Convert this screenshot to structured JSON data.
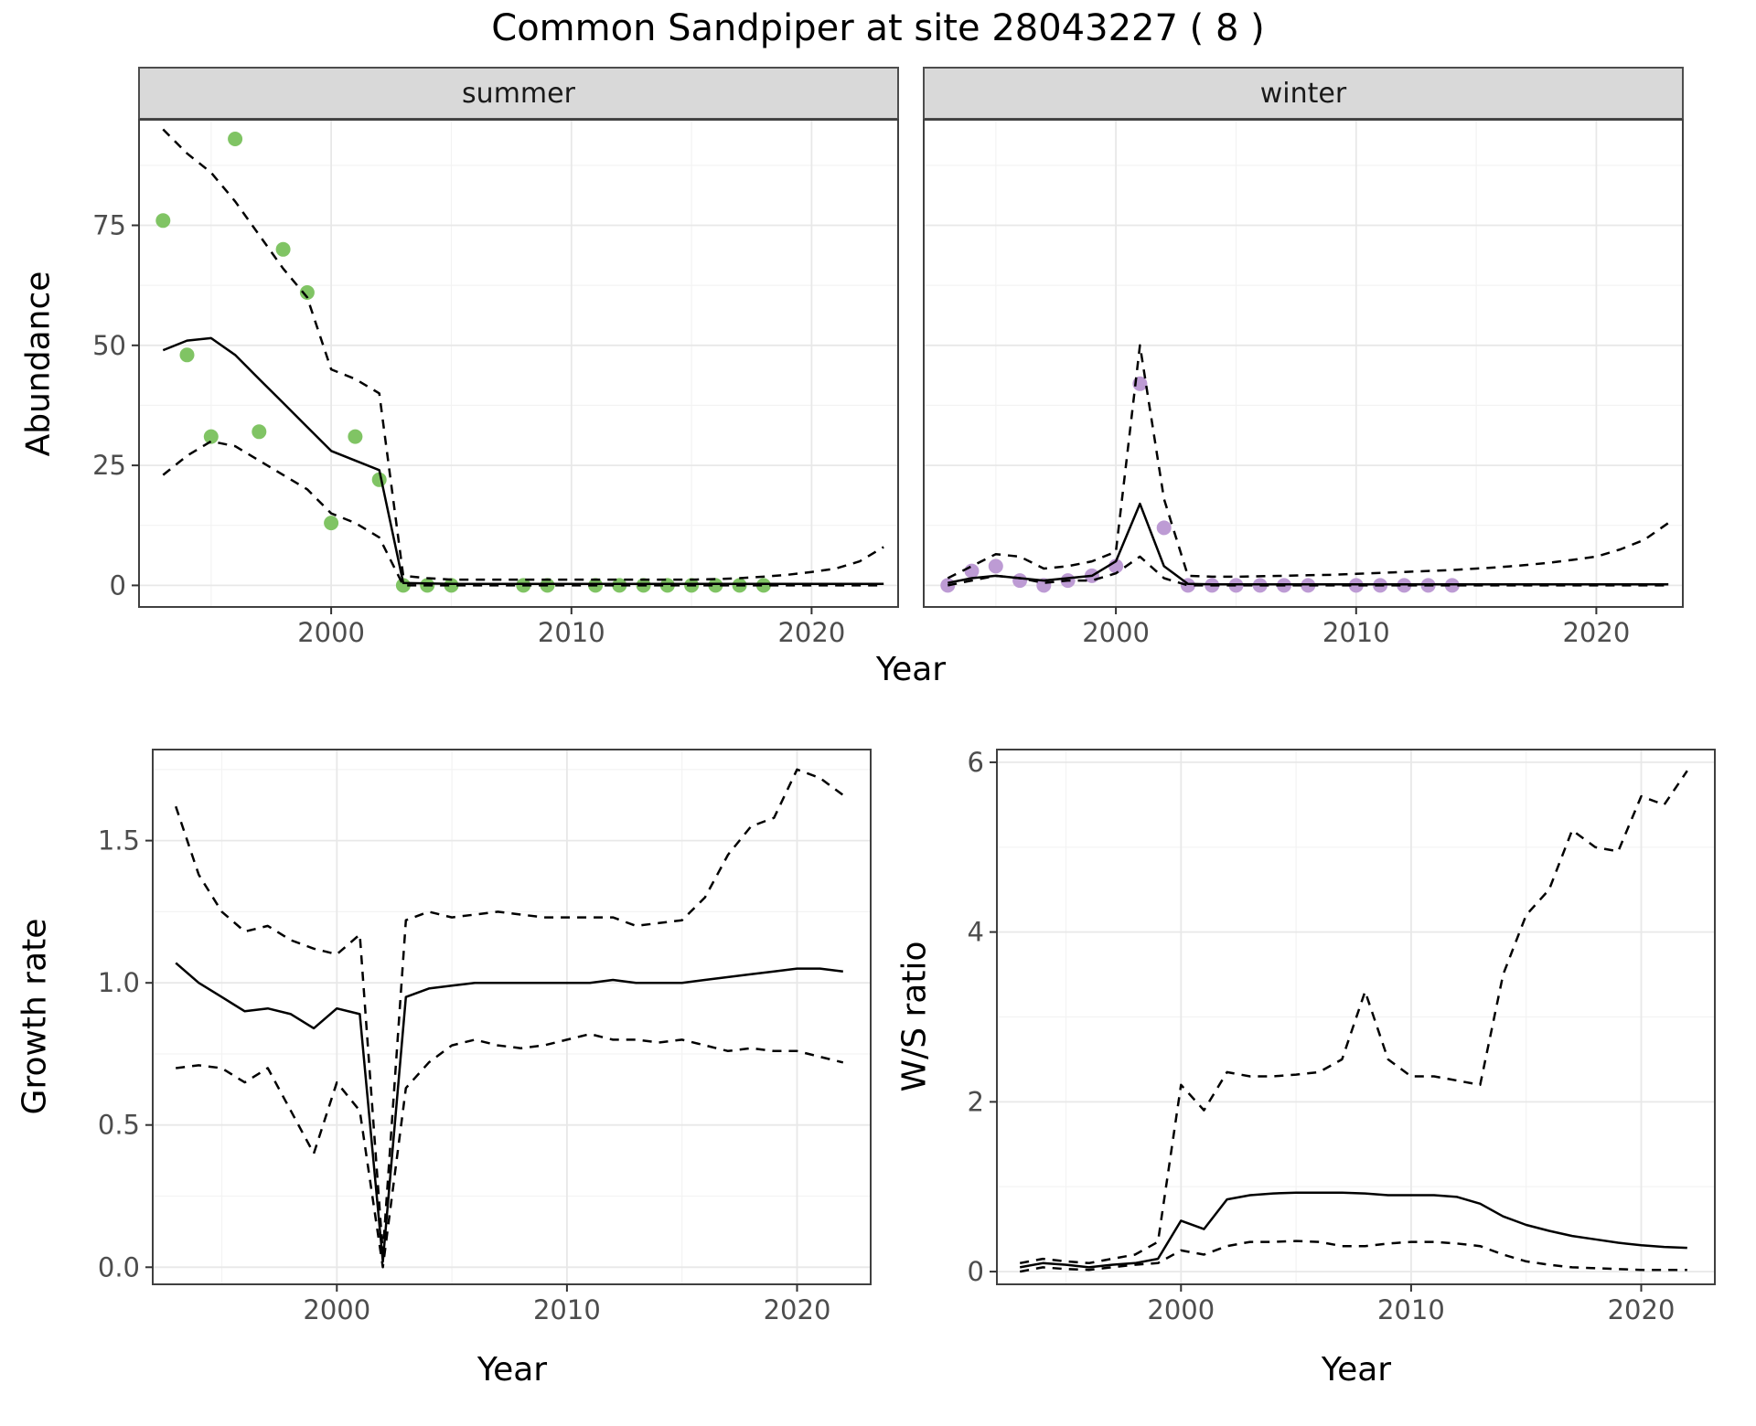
{
  "title": "Common Sandpiper at site 28043227 ( 8 )",
  "facets": {
    "summer": "summer",
    "winter": "winter"
  },
  "labels": {
    "year": "Year",
    "abundance": "Abundance",
    "growth_rate": "Growth rate",
    "ws_ratio": "W/S ratio"
  },
  "colors": {
    "summer_points": "#80c464",
    "winter_points": "#bd9bd4",
    "line": "#000000",
    "grid_major": "#e8e8e8",
    "grid_minor": "#f3f3f3",
    "panel_border": "#404040",
    "strip_bg": "#d9d9d9",
    "tick_text": "#4d4d4d"
  },
  "chart_data": [
    {
      "id": "abundance-summer",
      "type": "line",
      "facet": "summer",
      "xlabel": "Year",
      "ylabel": "Abundance",
      "xlim": [
        1992,
        2023.6
      ],
      "ylim": [
        -4.5,
        97
      ],
      "x_ticks": [
        2000,
        2010,
        2020
      ],
      "x_tick_labels": [
        "2000",
        "2010",
        "2020"
      ],
      "y_ticks": [
        0,
        25,
        50,
        75
      ],
      "y_tick_labels": [
        "0",
        "25",
        "50",
        "75"
      ],
      "show_y_axis": true,
      "grid": true,
      "series": [
        {
          "name": "observed_counts",
          "style": "points",
          "color": "#80c464",
          "x": [
            1993,
            1994,
            1995,
            1996,
            1997,
            1998,
            1999,
            2000,
            2001,
            2002,
            2003,
            2004,
            2005,
            2008,
            2009,
            2011,
            2012,
            2013,
            2014,
            2015,
            2016,
            2017,
            2018
          ],
          "y": [
            76,
            48,
            31,
            93,
            32,
            70,
            61,
            13,
            31,
            22,
            0,
            0,
            0,
            0,
            0,
            0,
            0,
            0,
            0,
            0,
            0,
            0,
            0
          ]
        },
        {
          "name": "model_fit",
          "style": "solid",
          "color": "#000000",
          "x": [
            1993,
            1994,
            1995,
            1996,
            1997,
            1998,
            1999,
            2000,
            2001,
            2002,
            2003,
            2004,
            2005,
            2006,
            2007,
            2008,
            2009,
            2010,
            2011,
            2012,
            2013,
            2014,
            2015,
            2016,
            2017,
            2018,
            2019,
            2020,
            2021,
            2022,
            2023
          ],
          "y": [
            49,
            51,
            51.5,
            48,
            43,
            38,
            33,
            28,
            26,
            24,
            0.5,
            0.4,
            0.3,
            0.3,
            0.3,
            0.3,
            0.3,
            0.3,
            0.3,
            0.3,
            0.3,
            0.3,
            0.3,
            0.3,
            0.3,
            0.3,
            0.3,
            0.3,
            0.3,
            0.3,
            0.3
          ]
        },
        {
          "name": "upper_ci",
          "style": "dashed",
          "color": "#000000",
          "x": [
            1993,
            1994,
            1995,
            1996,
            1997,
            1998,
            1999,
            2000,
            2001,
            2002,
            2003,
            2004,
            2005,
            2006,
            2007,
            2008,
            2009,
            2010,
            2011,
            2012,
            2013,
            2014,
            2015,
            2016,
            2017,
            2018,
            2019,
            2020,
            2021,
            2022,
            2023
          ],
          "y": [
            95,
            90,
            86,
            80,
            73,
            66,
            60,
            45,
            43,
            40,
            2,
            1.5,
            1.2,
            1.2,
            1.2,
            1.2,
            1.2,
            1.2,
            1.2,
            1.2,
            1.2,
            1.2,
            1.2,
            1.3,
            1.5,
            1.8,
            2.2,
            2.8,
            3.5,
            5,
            8
          ]
        },
        {
          "name": "lower_ci",
          "style": "dashed",
          "color": "#000000",
          "x": [
            1993,
            1994,
            1995,
            1996,
            1997,
            1998,
            1999,
            2000,
            2001,
            2002,
            2003,
            2004,
            2005,
            2006,
            2007,
            2008,
            2009,
            2010,
            2011,
            2012,
            2013,
            2014,
            2015,
            2016,
            2017,
            2018,
            2019,
            2020,
            2021,
            2022,
            2023
          ],
          "y": [
            23,
            27,
            30,
            29,
            26,
            23,
            20,
            15,
            13,
            10,
            0,
            0,
            0,
            0,
            0,
            0,
            0,
            0,
            0,
            0,
            0,
            0,
            0,
            0,
            0,
            0,
            0,
            0,
            0,
            0,
            0
          ]
        }
      ]
    },
    {
      "id": "abundance-winter",
      "type": "line",
      "facet": "winter",
      "xlabel": "Year",
      "ylabel": "Abundance",
      "xlim": [
        1992,
        2023.6
      ],
      "ylim": [
        -4.5,
        97
      ],
      "x_ticks": [
        2000,
        2010,
        2020
      ],
      "x_tick_labels": [
        "2000",
        "2010",
        "2020"
      ],
      "y_ticks": [
        0,
        25,
        50,
        75
      ],
      "y_tick_labels": [
        "0",
        "25",
        "50",
        "75"
      ],
      "show_y_axis": false,
      "grid": true,
      "series": [
        {
          "name": "observed_counts",
          "style": "points",
          "color": "#bd9bd4",
          "x": [
            1993,
            1994,
            1995,
            1996,
            1997,
            1998,
            1999,
            2000,
            2001,
            2002,
            2003,
            2004,
            2005,
            2006,
            2007,
            2008,
            2010,
            2011,
            2012,
            2013,
            2014
          ],
          "y": [
            0,
            3,
            4,
            1,
            0,
            1,
            2,
            4,
            42,
            12,
            0,
            0,
            0,
            0,
            0,
            0,
            0,
            0,
            0,
            0,
            0
          ]
        },
        {
          "name": "model_fit",
          "style": "solid",
          "color": "#000000",
          "x": [
            1993,
            1994,
            1995,
            1996,
            1997,
            1998,
            1999,
            2000,
            2001,
            2002,
            2003,
            2004,
            2005,
            2006,
            2007,
            2008,
            2009,
            2010,
            2011,
            2012,
            2013,
            2014,
            2015,
            2016,
            2017,
            2018,
            2019,
            2020,
            2021,
            2022,
            2023
          ],
          "y": [
            0.5,
            1.5,
            2,
            1.5,
            1,
            1.5,
            2,
            5,
            17,
            4,
            0.3,
            0.2,
            0.2,
            0.2,
            0.2,
            0.2,
            0.2,
            0.2,
            0.2,
            0.2,
            0.2,
            0.2,
            0.2,
            0.2,
            0.2,
            0.2,
            0.2,
            0.2,
            0.2,
            0.2,
            0.2
          ]
        },
        {
          "name": "upper_ci",
          "style": "dashed",
          "color": "#000000",
          "x": [
            1993,
            1994,
            1995,
            1996,
            1997,
            1998,
            1999,
            2000,
            2001,
            2002,
            2003,
            2004,
            2005,
            2006,
            2007,
            2008,
            2009,
            2010,
            2011,
            2012,
            2013,
            2014,
            2015,
            2016,
            2017,
            2018,
            2019,
            2020,
            2021,
            2022,
            2023
          ],
          "y": [
            1.5,
            4,
            6.5,
            6,
            3.5,
            4,
            5,
            7,
            50,
            18,
            2,
            1.8,
            1.8,
            1.9,
            2,
            2.1,
            2.2,
            2.4,
            2.6,
            2.8,
            3,
            3.2,
            3.5,
            3.8,
            4.2,
            4.7,
            5.3,
            6,
            7.5,
            9.5,
            13
          ]
        },
        {
          "name": "lower_ci",
          "style": "dashed",
          "color": "#000000",
          "x": [
            1993,
            1994,
            1995,
            1996,
            1997,
            1998,
            1999,
            2000,
            2001,
            2002,
            2003,
            2004,
            2005,
            2006,
            2007,
            2008,
            2009,
            2010,
            2011,
            2012,
            2013,
            2014,
            2015,
            2016,
            2017,
            2018,
            2019,
            2020,
            2021,
            2022,
            2023
          ],
          "y": [
            0,
            1,
            2,
            1.5,
            0.5,
            1,
            1,
            2.5,
            6,
            1.5,
            0,
            0,
            0,
            0,
            0,
            0,
            0,
            0,
            0,
            0,
            0,
            0,
            0,
            0,
            0,
            0,
            0,
            0,
            0,
            0,
            0
          ]
        }
      ]
    },
    {
      "id": "growth-rate",
      "type": "line",
      "xlabel": "Year",
      "ylabel": "Growth rate",
      "xlim": [
        1992,
        2023.2
      ],
      "ylim": [
        -0.06,
        1.82
      ],
      "x_ticks": [
        2000,
        2010,
        2020
      ],
      "x_tick_labels": [
        "2000",
        "2010",
        "2020"
      ],
      "y_ticks": [
        0,
        0.5,
        1,
        1.5
      ],
      "y_tick_labels": [
        "0.0",
        "0.5",
        "1.0",
        "1.5"
      ],
      "show_y_axis": true,
      "grid": true,
      "series": [
        {
          "name": "growth_rate_fit",
          "style": "solid",
          "color": "#000000",
          "x": [
            1993,
            1994,
            1995,
            1996,
            1997,
            1998,
            1999,
            2000,
            2001,
            2002,
            2003,
            2004,
            2005,
            2006,
            2007,
            2008,
            2009,
            2010,
            2011,
            2012,
            2013,
            2014,
            2015,
            2016,
            2017,
            2018,
            2019,
            2020,
            2021,
            2022
          ],
          "y": [
            1.07,
            1.0,
            0.95,
            0.9,
            0.91,
            0.89,
            0.84,
            0.91,
            0.89,
            0.02,
            0.95,
            0.98,
            0.99,
            1.0,
            1.0,
            1.0,
            1.0,
            1.0,
            1.0,
            1.01,
            1.0,
            1.0,
            1.0,
            1.01,
            1.02,
            1.03,
            1.04,
            1.05,
            1.05,
            1.04
          ]
        },
        {
          "name": "upper_ci",
          "style": "dashed",
          "color": "#000000",
          "x": [
            1993,
            1994,
            1995,
            1996,
            1997,
            1998,
            1999,
            2000,
            2001,
            2002,
            2003,
            2004,
            2005,
            2006,
            2007,
            2008,
            2009,
            2010,
            2011,
            2012,
            2013,
            2014,
            2015,
            2016,
            2017,
            2018,
            2019,
            2020,
            2021,
            2022
          ],
          "y": [
            1.62,
            1.38,
            1.25,
            1.18,
            1.2,
            1.15,
            1.12,
            1.1,
            1.17,
            0.05,
            1.22,
            1.25,
            1.23,
            1.24,
            1.25,
            1.24,
            1.23,
            1.23,
            1.23,
            1.23,
            1.2,
            1.21,
            1.22,
            1.3,
            1.45,
            1.55,
            1.58,
            1.75,
            1.72,
            1.66
          ]
        },
        {
          "name": "lower_ci",
          "style": "dashed",
          "color": "#000000",
          "x": [
            1993,
            1994,
            1995,
            1996,
            1997,
            1998,
            1999,
            2000,
            2001,
            2002,
            2003,
            2004,
            2005,
            2006,
            2007,
            2008,
            2009,
            2010,
            2011,
            2012,
            2013,
            2014,
            2015,
            2016,
            2017,
            2018,
            2019,
            2020,
            2021,
            2022
          ],
          "y": [
            0.7,
            0.71,
            0.7,
            0.65,
            0.7,
            0.55,
            0.4,
            0.65,
            0.55,
            0.0,
            0.63,
            0.72,
            0.78,
            0.8,
            0.78,
            0.77,
            0.78,
            0.8,
            0.82,
            0.8,
            0.8,
            0.79,
            0.8,
            0.78,
            0.76,
            0.77,
            0.76,
            0.76,
            0.74,
            0.72
          ]
        }
      ]
    },
    {
      "id": "ws-ratio",
      "type": "line",
      "xlabel": "Year",
      "ylabel": "W/S ratio",
      "xlim": [
        1992,
        2023.2
      ],
      "ylim": [
        -0.15,
        6.15
      ],
      "x_ticks": [
        2000,
        2010,
        2020
      ],
      "x_tick_labels": [
        "2000",
        "2010",
        "2020"
      ],
      "y_ticks": [
        0,
        2,
        4,
        6
      ],
      "y_tick_labels": [
        "0",
        "2",
        "4",
        "6"
      ],
      "show_y_axis": true,
      "grid": true,
      "series": [
        {
          "name": "ws_ratio_fit",
          "style": "solid",
          "color": "#000000",
          "x": [
            1993,
            1994,
            1995,
            1996,
            1997,
            1998,
            1999,
            2000,
            2001,
            2002,
            2003,
            2004,
            2005,
            2006,
            2007,
            2008,
            2009,
            2010,
            2011,
            2012,
            2013,
            2014,
            2015,
            2016,
            2017,
            2018,
            2019,
            2020,
            2021,
            2022
          ],
          "y": [
            0.05,
            0.1,
            0.08,
            0.05,
            0.08,
            0.1,
            0.15,
            0.6,
            0.5,
            0.85,
            0.9,
            0.92,
            0.93,
            0.93,
            0.93,
            0.92,
            0.9,
            0.9,
            0.9,
            0.88,
            0.8,
            0.65,
            0.55,
            0.48,
            0.42,
            0.38,
            0.34,
            0.31,
            0.29,
            0.28
          ]
        },
        {
          "name": "upper_ci",
          "style": "dashed",
          "color": "#000000",
          "x": [
            1993,
            1994,
            1995,
            1996,
            1997,
            1998,
            1999,
            2000,
            2001,
            2002,
            2003,
            2004,
            2005,
            2006,
            2007,
            2008,
            2009,
            2010,
            2011,
            2012,
            2013,
            2014,
            2015,
            2016,
            2017,
            2018,
            2019,
            2020,
            2021,
            2022
          ],
          "y": [
            0.1,
            0.15,
            0.12,
            0.1,
            0.15,
            0.2,
            0.35,
            2.2,
            1.9,
            2.35,
            2.3,
            2.3,
            2.32,
            2.35,
            2.5,
            3.3,
            2.5,
            2.3,
            2.3,
            2.25,
            2.2,
            3.5,
            4.2,
            4.5,
            5.2,
            5.0,
            4.95,
            5.6,
            5.5,
            5.9
          ]
        },
        {
          "name": "lower_ci",
          "style": "dashed",
          "color": "#000000",
          "x": [
            1993,
            1994,
            1995,
            1996,
            1997,
            1998,
            1999,
            2000,
            2001,
            2002,
            2003,
            2004,
            2005,
            2006,
            2007,
            2008,
            2009,
            2010,
            2011,
            2012,
            2013,
            2014,
            2015,
            2016,
            2017,
            2018,
            2019,
            2020,
            2021,
            2022
          ],
          "y": [
            0.0,
            0.05,
            0.03,
            0.02,
            0.05,
            0.08,
            0.1,
            0.25,
            0.2,
            0.3,
            0.35,
            0.35,
            0.36,
            0.35,
            0.3,
            0.3,
            0.33,
            0.35,
            0.35,
            0.33,
            0.3,
            0.2,
            0.12,
            0.08,
            0.05,
            0.04,
            0.03,
            0.02,
            0.02,
            0.02
          ]
        }
      ]
    }
  ]
}
